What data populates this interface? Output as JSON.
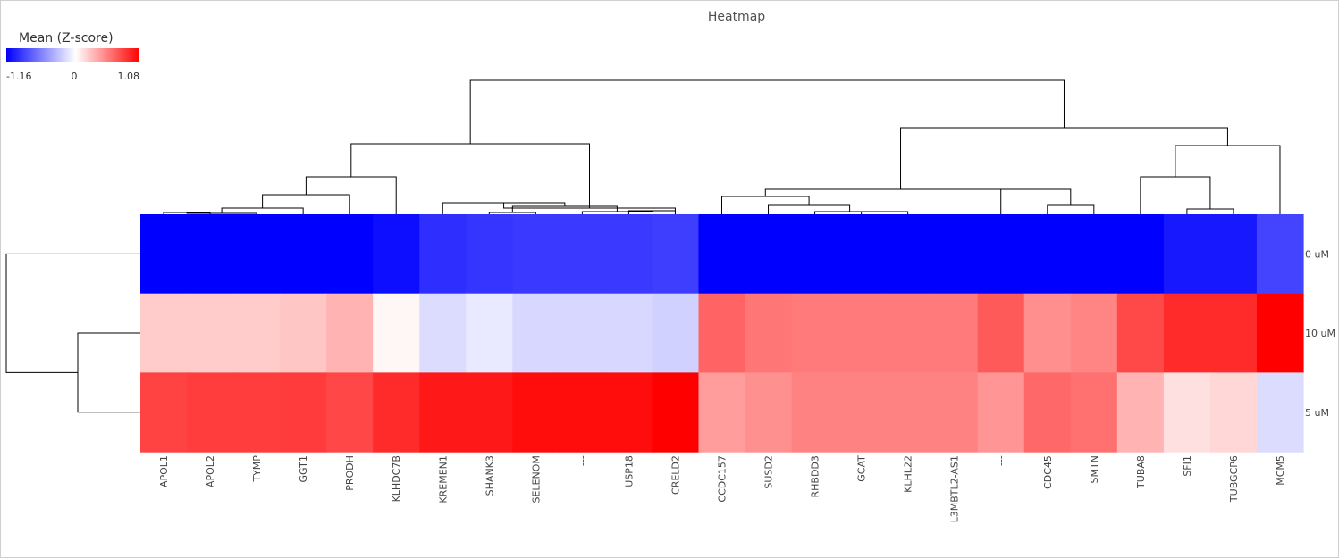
{
  "chart_data": {
    "type": "heatmap",
    "title": "Heatmap",
    "colorscale": {
      "label": "Mean (Z-score)",
      "min": -1.16,
      "mid": 0,
      "max": 1.08,
      "min_label": "-1.16",
      "mid_label": "0",
      "max_label": "1.08",
      "low_color": "#0000ff",
      "mid_color": "#ffffff",
      "high_color": "#ff0000"
    },
    "rows": [
      "0 uM",
      "10 uM",
      "5 uM"
    ],
    "columns": [
      "APOL1",
      "APOL2",
      "TYMP",
      "GGT1",
      "PRODH",
      "KLHDC7B",
      "KREMEN1",
      "SHANK3",
      "SELENOM",
      "---",
      "USP18",
      "CRELD2",
      "CCDC157",
      "SUSD2",
      "RHBDD3",
      "GCAT",
      "KLHL22",
      "L3MBTL2-AS1",
      "---",
      "CDC45",
      "SMTN",
      "TUBA8",
      "SFI1",
      "TUBGCP6",
      "MCM5"
    ],
    "values": [
      [
        -1.16,
        -1.16,
        -1.16,
        -1.16,
        -1.16,
        -1.1,
        -0.95,
        -0.92,
        -0.9,
        -0.9,
        -0.9,
        -0.88,
        -1.16,
        -1.16,
        -1.16,
        -1.16,
        -1.16,
        -1.16,
        -1.16,
        -1.16,
        -1.16,
        -1.16,
        -1.05,
        -1.05,
        -0.85
      ],
      [
        0.22,
        0.22,
        0.22,
        0.24,
        0.32,
        0.04,
        -0.16,
        -0.1,
        -0.18,
        -0.18,
        -0.18,
        -0.21,
        0.66,
        0.58,
        0.56,
        0.56,
        0.56,
        0.56,
        0.7,
        0.48,
        0.52,
        0.77,
        0.9,
        0.9,
        1.08
      ],
      [
        0.8,
        0.82,
        0.82,
        0.83,
        0.78,
        0.9,
        0.98,
        0.98,
        1.03,
        1.03,
        1.03,
        1.08,
        0.42,
        0.47,
        0.53,
        0.53,
        0.53,
        0.53,
        0.45,
        0.64,
        0.6,
        0.32,
        0.13,
        0.17,
        -0.16
      ]
    ]
  }
}
